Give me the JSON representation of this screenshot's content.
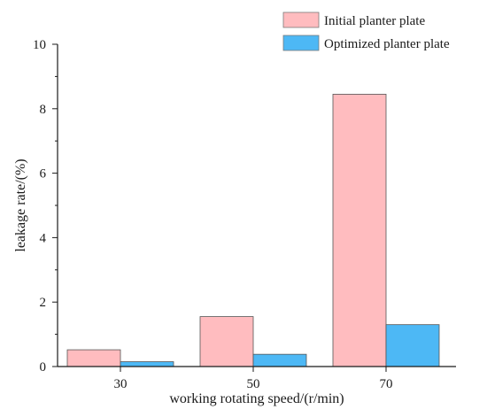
{
  "chart_data": {
    "type": "bar",
    "title": "",
    "xlabel": "working rotating speed/(r/min)",
    "ylabel": "leakage rate/(%)",
    "categories": [
      "30",
      "50",
      "70"
    ],
    "ylim": [
      0,
      10
    ],
    "yticks": [
      0,
      2,
      4,
      6,
      8,
      10
    ],
    "grid": false,
    "legend_position": "top-right",
    "series": [
      {
        "name": "Initial planter plate",
        "color": "#ffbcbf",
        "values": [
          0.52,
          1.55,
          8.45
        ]
      },
      {
        "name": "Optimized planter plate",
        "color": "#4db8f5",
        "values": [
          0.15,
          0.38,
          1.3
        ]
      }
    ]
  }
}
